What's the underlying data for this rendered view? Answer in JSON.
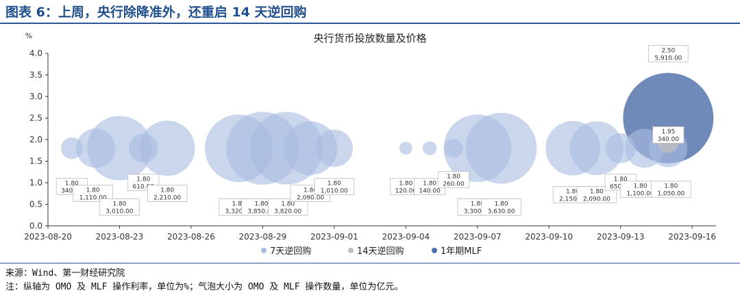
{
  "header": {
    "title": "图表 6：上周，央行除降准外，还重启 14 天逆回购"
  },
  "footer": {
    "source": "来源：Wind、第一财经研究院",
    "note": "注：纵轴为 OMO 及 MLF 操作利率，单位为%；气泡大小为 OMO 及 MLF 操作数量，单位为亿元。"
  },
  "chart_data": {
    "type": "scatter",
    "subtype": "bubble",
    "title": "央行货币投放数量及价格",
    "ylabel": "%",
    "xlabel": "",
    "ylim": [
      0,
      4.0
    ],
    "yticks": [
      "0.0",
      "0.5",
      "1.0",
      "1.5",
      "2.0",
      "2.5",
      "3.0",
      "3.5",
      "4.0"
    ],
    "xlim": [
      "2023-08-20",
      "2023-09-17"
    ],
    "xticks": [
      "2023-08-20",
      "2023-08-23",
      "2023-08-26",
      "2023-08-29",
      "2023-09-01",
      "2023-09-04",
      "2023-09-07",
      "2023-09-10",
      "2023-09-13",
      "2023-09-16"
    ],
    "legend_position": "bottom-center",
    "grid": false,
    "series": [
      {
        "name": "7天逆回购",
        "color": "#a9bde0",
        "points": [
          {
            "date": "2023-08-21",
            "rate": 1.8,
            "amount": 340,
            "label": "1.80\n340.00"
          },
          {
            "date": "2023-08-22",
            "rate": 1.8,
            "amount": 1110,
            "label": "1.80\n1,110.00"
          },
          {
            "date": "2023-08-23",
            "rate": 1.8,
            "amount": 3010,
            "label": "1.80\n3,010.00"
          },
          {
            "date": "2023-08-24",
            "rate": 1.8,
            "amount": 610,
            "label": "1.80\n610.00"
          },
          {
            "date": "2023-08-25",
            "rate": 1.8,
            "amount": 2210,
            "label": "1.80\n2,210.00"
          },
          {
            "date": "2023-08-28",
            "rate": 1.8,
            "amount": 3320,
            "label": "1.80\n3,320.00"
          },
          {
            "date": "2023-08-29",
            "rate": 1.8,
            "amount": 3850,
            "label": "1.80\n3,850.00"
          },
          {
            "date": "2023-08-30",
            "rate": 1.8,
            "amount": 3820,
            "label": "1.80\n3,820.00"
          },
          {
            "date": "2023-08-31",
            "rate": 1.8,
            "amount": 2090,
            "label": "1.80\n2,090.00"
          },
          {
            "date": "2023-09-01",
            "rate": 1.8,
            "amount": 1010,
            "label": "1.80\n1,010.00"
          },
          {
            "date": "2023-09-04",
            "rate": 1.8,
            "amount": 120,
            "label": "1.80\n120.00"
          },
          {
            "date": "2023-09-05",
            "rate": 1.8,
            "amount": 140,
            "label": "1.80\n140.00"
          },
          {
            "date": "2023-09-06",
            "rate": 1.8,
            "amount": 260,
            "label": "1.80\n260.00"
          },
          {
            "date": "2023-09-07",
            "rate": 1.8,
            "amount": 3300,
            "label": "1.80\n3,300.00"
          },
          {
            "date": "2023-09-08",
            "rate": 1.8,
            "amount": 3630,
            "label": "1.80\n3,630.00"
          },
          {
            "date": "2023-09-11",
            "rate": 1.8,
            "amount": 2150,
            "label": "1.80\n2,150.00"
          },
          {
            "date": "2023-09-12",
            "rate": 1.8,
            "amount": 2090,
            "label": "1.80\n2,090.00"
          },
          {
            "date": "2023-09-13",
            "rate": 1.8,
            "amount": 650,
            "label": "1.80\n650.00"
          },
          {
            "date": "2023-09-14",
            "rate": 1.8,
            "amount": 1100,
            "label": "1.80\n1,100.00"
          },
          {
            "date": "2023-09-15",
            "rate": 1.8,
            "amount": 1050,
            "label": "1.80\n1,050.00"
          }
        ]
      },
      {
        "name": "14天逆回购",
        "color": "#bfbfbf",
        "points": [
          {
            "date": "2023-09-15",
            "rate": 1.95,
            "amount": 340,
            "label": "1.95\n340.00"
          }
        ]
      },
      {
        "name": "1年期MLF",
        "color": "#4f6fa8",
        "points": [
          {
            "date": "2023-09-15",
            "rate": 2.5,
            "amount": 5910,
            "label": "2.50\n5,910.00"
          }
        ]
      }
    ]
  }
}
